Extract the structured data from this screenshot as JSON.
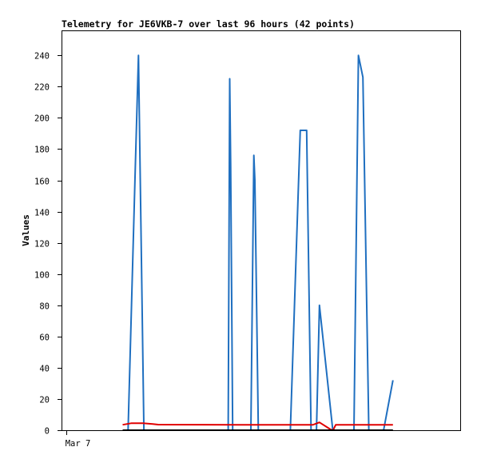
{
  "chart_data": {
    "type": "line",
    "title": "Telemetry for JE6VKB-7 over last 96 hours (42 points)",
    "xlabel": "",
    "ylabel": "Values",
    "x_ticks": [
      {
        "label": "Mar 7",
        "x": 0
      }
    ],
    "xlim": [
      -1,
      80
    ],
    "ylim": [
      0,
      256
    ],
    "yticks": [
      0,
      20,
      40,
      60,
      80,
      100,
      120,
      140,
      160,
      180,
      200,
      220,
      240
    ],
    "grid": false,
    "legend": "none",
    "series": [
      {
        "color": "#1f6fc0",
        "points": [
          [
            11.4,
            0
          ],
          [
            12.5,
            0
          ],
          [
            13.9,
            162
          ],
          [
            14.6,
            240
          ],
          [
            15.7,
            0
          ],
          [
            31.6,
            0
          ],
          [
            32.8,
            0
          ],
          [
            33.1,
            225
          ],
          [
            33.3,
            170
          ],
          [
            33.7,
            0
          ],
          [
            37.4,
            0
          ],
          [
            38.0,
            176
          ],
          [
            38.2,
            160
          ],
          [
            38.9,
            0
          ],
          [
            45.4,
            0
          ],
          [
            47.4,
            192
          ],
          [
            48.7,
            192
          ],
          [
            49.6,
            0
          ],
          [
            50.7,
            0
          ],
          [
            51.3,
            80
          ],
          [
            54.0,
            0
          ],
          [
            58.3,
            0
          ],
          [
            59.2,
            240
          ],
          [
            60.1,
            226
          ],
          [
            61.3,
            0
          ],
          [
            64.3,
            0
          ],
          [
            66.2,
            32
          ]
        ]
      },
      {
        "color": "#e00000",
        "points": [
          [
            11.4,
            3.5
          ],
          [
            13.2,
            4.5
          ],
          [
            15.5,
            4.5
          ],
          [
            17.5,
            4
          ],
          [
            18.6,
            3.6
          ],
          [
            35.0,
            3.5
          ],
          [
            45.0,
            3.5
          ],
          [
            50.0,
            3.5
          ],
          [
            51.3,
            5
          ],
          [
            53.7,
            0.2
          ],
          [
            54.1,
            0.2
          ],
          [
            54.6,
            3.5
          ],
          [
            57.0,
            3.5
          ],
          [
            66.2,
            3.5
          ]
        ]
      },
      {
        "color": "#000000",
        "points": [
          [
            11.4,
            0
          ],
          [
            66.2,
            0
          ]
        ]
      }
    ]
  }
}
